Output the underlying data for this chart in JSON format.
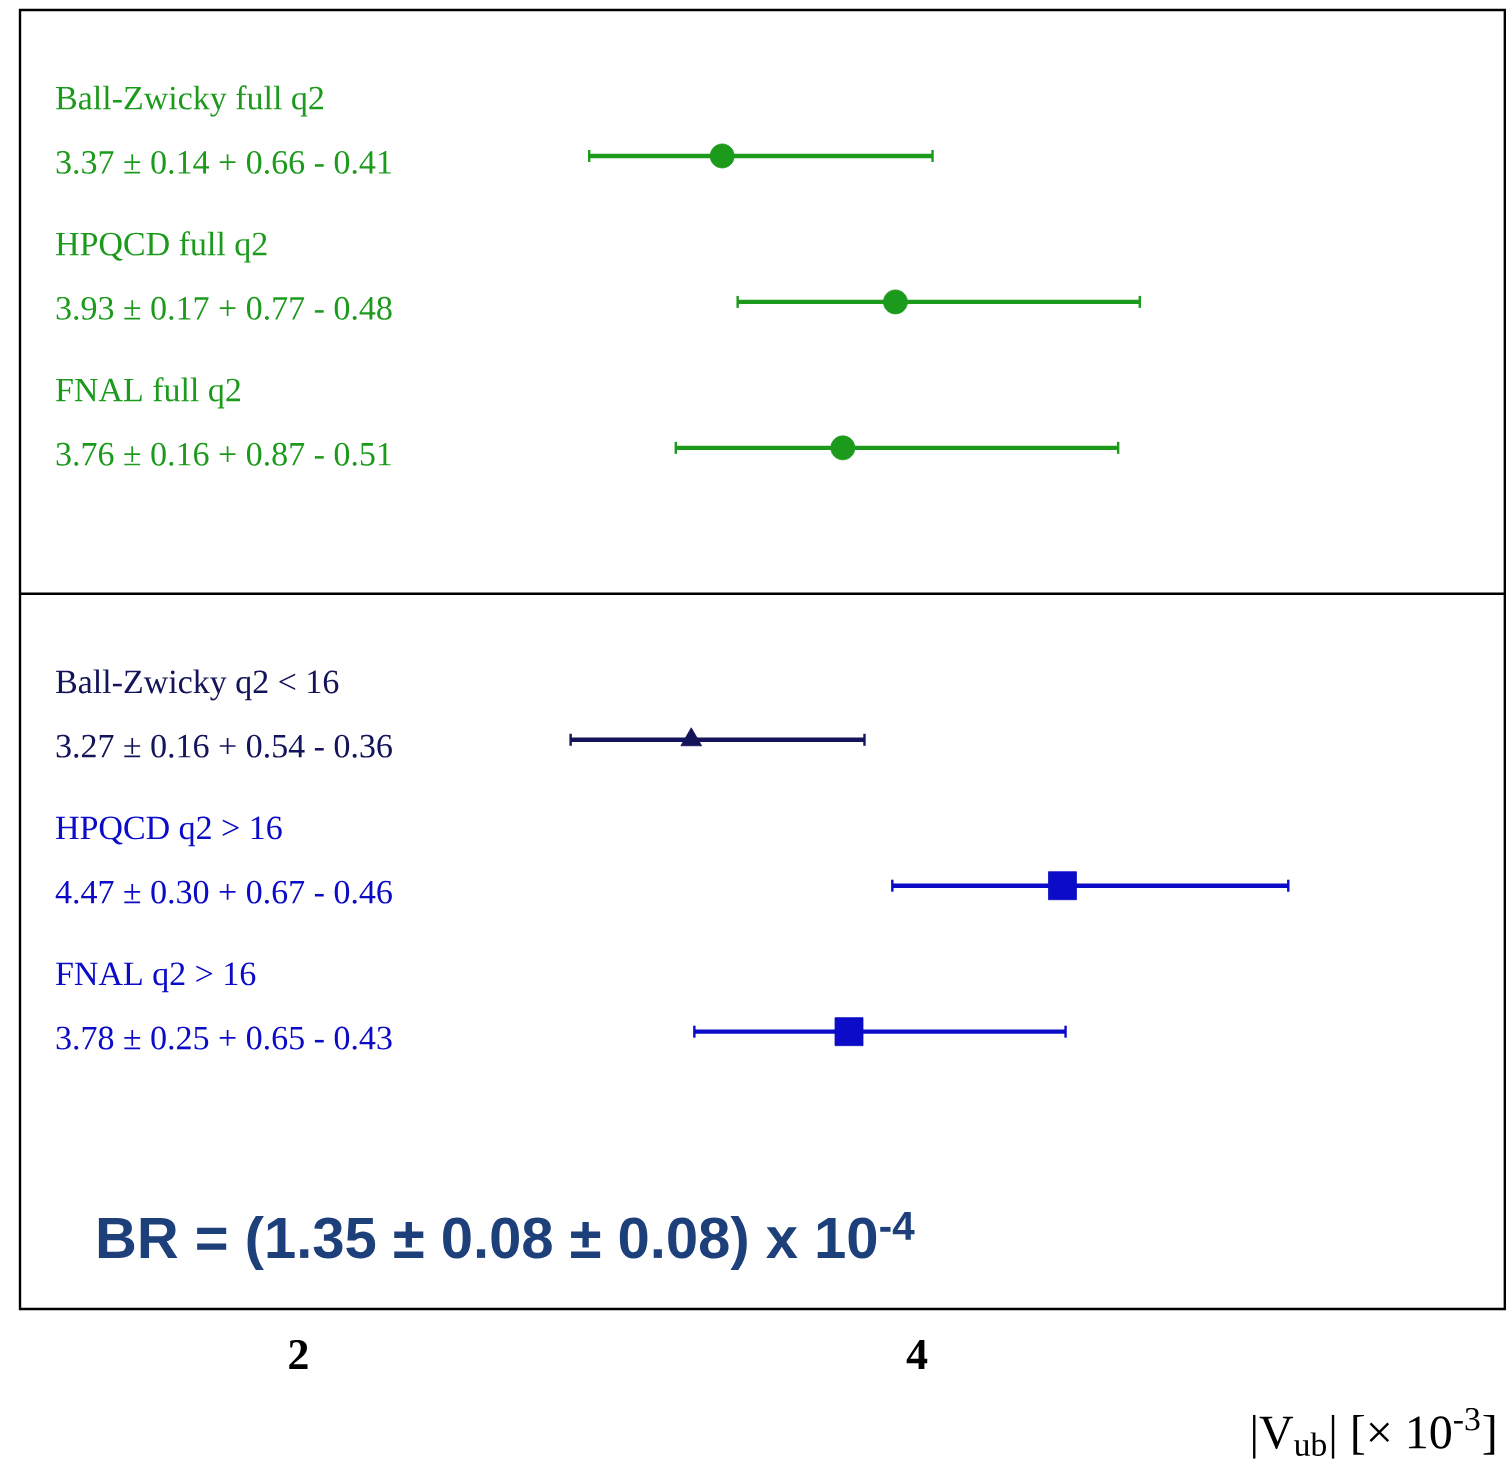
{
  "chart_data": {
    "type": "scatter",
    "orientation": "horizontal",
    "xlabel": "|V$_{ub}$|  [× 10$^{-3}$]",
    "categories": [
      "Ball-Zwicky full q2",
      "HPQCD  full q2",
      "FNAL full q2",
      null,
      "Ball-Zwicky q2 < 16",
      "HPQCD q2 > 16",
      "FNAL q2 > 16"
    ],
    "series": [
      {
        "color": "#1c9a1c",
        "marker": "circle",
        "values": [
          3.37,
          3.93,
          3.76,
          null,
          null,
          null,
          null
        ],
        "errors": [
          [
            2.94,
            4.05
          ],
          [
            3.42,
            4.72
          ],
          [
            3.22,
            4.65
          ],
          null,
          null,
          null,
          null
        ]
      },
      {
        "color": "#14145a",
        "marker": "triangle",
        "values": [
          null,
          null,
          null,
          null,
          3.27,
          null,
          null
        ],
        "errors": [
          null,
          null,
          null,
          null,
          [
            2.88,
            3.83
          ],
          null,
          null
        ]
      },
      {
        "color": "#0b0bc8",
        "marker": "square",
        "values": [
          null,
          null,
          null,
          null,
          null,
          4.47,
          3.78
        ],
        "errors": [
          null,
          null,
          null,
          null,
          null,
          [
            3.92,
            5.2
          ],
          [
            3.28,
            4.48
          ]
        ]
      }
    ],
    "xlim": [
      1.1,
      5.9
    ],
    "xticks": [
      2,
      4
    ],
    "annotations": [
      "3.37 ± 0.14 + 0.66 - 0.41",
      "3.93 ± 0.17 + 0.77 - 0.48",
      "3.76 ± 0.16 + 0.87 - 0.51",
      "3.27 ± 0.16 + 0.54 - 0.36",
      "4.47 ± 0.30 + 0.67 - 0.46",
      "3.78 ± 0.25 + 0.65 - 0.43",
      "BR = (1.35 ± 0.08 ± 0.08) x 10$^{-4}$"
    ]
  }
}
